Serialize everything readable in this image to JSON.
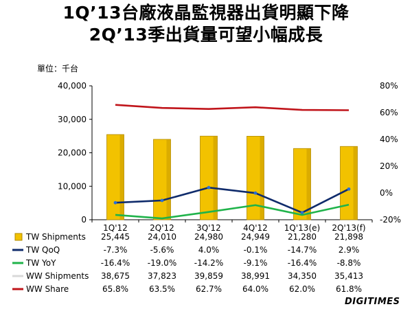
{
  "header": {
    "title_line1": "1Q’13台廠液晶監視器出貨明顯下降",
    "title_line2": "2Q’13季出貨量可望小幅成長",
    "unit": "單位：千台"
  },
  "brand": {
    "logo_text": "DIGITIMES"
  },
  "colors": {
    "bar": "#F2C200",
    "bar_edge": "#B08900",
    "tw_qoq": "#0F2B6B",
    "tw_yoy": "#1FB34A",
    "ww_shipments": "#D9D9D9",
    "ww_share": "#C0141A"
  },
  "chart_data": {
    "type": "bar",
    "categories": [
      "1Q'12",
      "2Q'12",
      "3Q'12",
      "4Q'12",
      "1Q'13(e)",
      "2Q'13(f)"
    ],
    "y_left": {
      "min": 0,
      "max": 40000,
      "ticks": [
        "0",
        "10,000",
        "20,000",
        "30,000",
        "40,000"
      ]
    },
    "y_right": {
      "min": -20,
      "max": 80,
      "ticks": [
        "-20%",
        "0%",
        "20%",
        "40%",
        "60%",
        "80%"
      ]
    },
    "series": [
      {
        "name": "TW Shipments",
        "kind": "bar",
        "axis": "left",
        "values": [
          25445,
          24010,
          24980,
          24949,
          21280,
          21898
        ],
        "labels": [
          "25,445",
          "24,010",
          "24,980",
          "24,949",
          "21,280",
          "21,898"
        ]
      },
      {
        "name": "TW QoQ",
        "kind": "line",
        "axis": "right",
        "values": [
          -7.3,
          -5.6,
          4.0,
          -0.1,
          -14.7,
          2.9
        ],
        "labels": [
          "-7.3%",
          "-5.6%",
          "4.0%",
          "-0.1%",
          "-14.7%",
          "2.9%"
        ]
      },
      {
        "name": "TW YoY",
        "kind": "line",
        "axis": "right",
        "values": [
          -16.4,
          -19.0,
          -14.2,
          -9.1,
          -16.4,
          -8.8
        ],
        "labels": [
          "-16.4%",
          "-19.0%",
          "-14.2%",
          "-9.1%",
          "-16.4%",
          "-8.8%"
        ]
      },
      {
        "name": "WW Shipments",
        "kind": "table-only",
        "axis": "left",
        "values": [
          38675,
          37823,
          39859,
          38991,
          34350,
          35413
        ],
        "labels": [
          "38,675",
          "37,823",
          "39,859",
          "38,991",
          "34,350",
          "35,413"
        ]
      },
      {
        "name": "WW Share",
        "kind": "line",
        "axis": "right",
        "values": [
          65.8,
          63.5,
          62.7,
          64.0,
          62.0,
          61.8
        ],
        "labels": [
          "65.8%",
          "63.5%",
          "62.7%",
          "64.0%",
          "62.0%",
          "61.8%"
        ]
      }
    ],
    "legend": "data-table-below",
    "grid": false
  }
}
